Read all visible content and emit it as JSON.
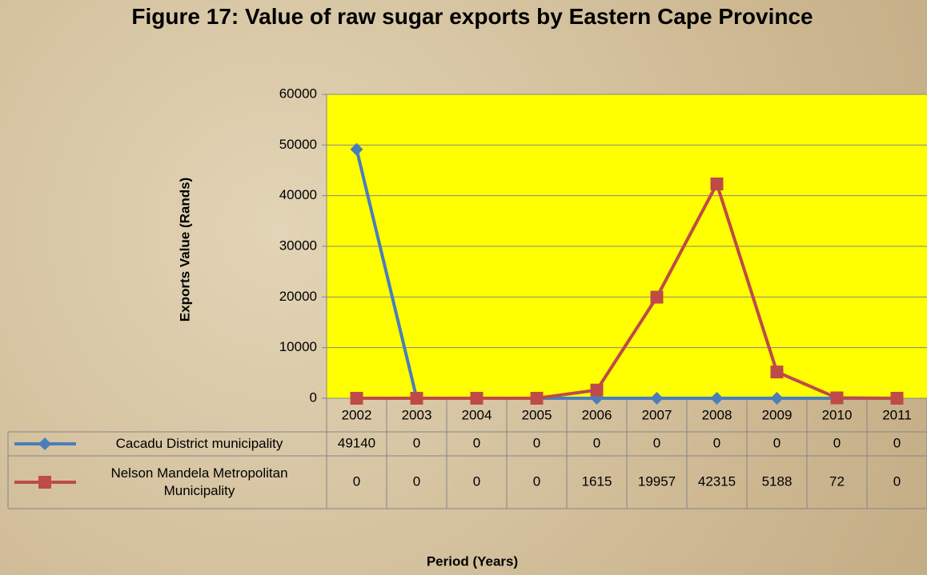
{
  "chart_data": {
    "type": "line",
    "title": "Figure 17: Value of raw sugar exports by Eastern Cape Province",
    "y_label": "Exports Value (Rands)",
    "x_label": "Period (Years)",
    "categories": [
      "2002",
      "2003",
      "2004",
      "2005",
      "2006",
      "2007",
      "2008",
      "2009",
      "2010",
      "2011"
    ],
    "series": [
      {
        "name": "Cacadu District municipality",
        "color": "#4a7ebb",
        "marker": "diamond",
        "values": [
          49140,
          0,
          0,
          0,
          0,
          0,
          0,
          0,
          0,
          0
        ]
      },
      {
        "name": "Nelson Mandela Metropolitan Municipality",
        "color": "#be4b48",
        "marker": "square",
        "values": [
          0,
          0,
          0,
          0,
          1615,
          19957,
          42315,
          5188,
          72,
          0
        ]
      }
    ],
    "ylim": [
      0,
      60000
    ],
    "yticks": [
      0,
      10000,
      20000,
      30000,
      40000,
      50000,
      60000
    ],
    "grid": true,
    "plot_background": "#ffff00",
    "data_table": true
  }
}
